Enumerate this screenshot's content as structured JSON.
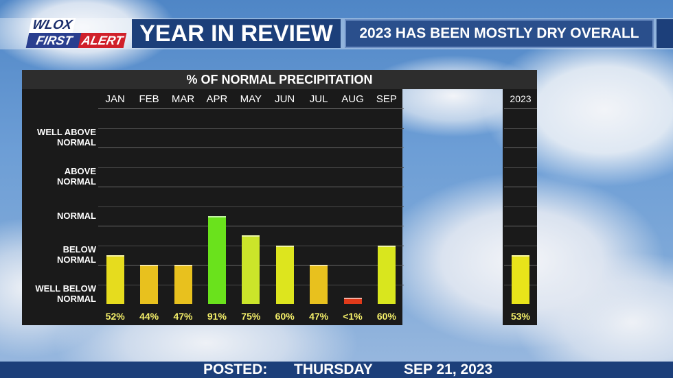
{
  "header": {
    "logo_top": "WLOX",
    "logo_first": "FIRST",
    "logo_alert": "ALERT",
    "title": "YEAR IN REVIEW",
    "subtitle": "2023 HAS BEEN MOSTLY DRY OVERALL"
  },
  "chart_data": {
    "type": "bar",
    "title": "% OF NORMAL PRECIPITATION",
    "categories": [
      "JAN",
      "FEB",
      "MAR",
      "APR",
      "MAY",
      "JUN",
      "JUL",
      "AUG",
      "SEP"
    ],
    "value_labels": [
      "52%",
      "44%",
      "47%",
      "91%",
      "75%",
      "60%",
      "47%",
      "<1%",
      "60%"
    ],
    "bar_levels": [
      2.5,
      2.0,
      2.0,
      4.5,
      3.5,
      3.0,
      2.0,
      0.3,
      3.0
    ],
    "bar_colors": [
      "#e6dc1e",
      "#e8c11e",
      "#e8c11e",
      "#6ae21c",
      "#cbe52a",
      "#dde51e",
      "#e8c11e",
      "#e03a1a",
      "#d9e61e"
    ],
    "summary": {
      "label": "2023",
      "value_label": "53%",
      "bar_level": 2.5,
      "color": "#e8e41a"
    },
    "y_categories": [
      "WELL BELOW NORMAL",
      "BELOW NORMAL",
      "NORMAL",
      "ABOVE NORMAL",
      "WELL ABOVE NORMAL"
    ],
    "y_labels": [
      {
        "line1": "WELL BELOW",
        "line2": "NORMAL"
      },
      {
        "line1": "BELOW",
        "line2": "NORMAL"
      },
      {
        "line1": "NORMAL",
        "line2": ""
      },
      {
        "line1": "ABOVE",
        "line2": "NORMAL"
      },
      {
        "line1": "WELL ABOVE",
        "line2": "NORMAL"
      }
    ],
    "ylim": [
      0,
      10
    ],
    "grid": true
  },
  "footer": {
    "posted_label": "POSTED:",
    "day": "THURSDAY",
    "date": "SEP 21, 2023"
  },
  "colors": {
    "title_bg": "#1c3f7a",
    "alert_red": "#d0202a",
    "label_yellow": "#f5f06a"
  }
}
